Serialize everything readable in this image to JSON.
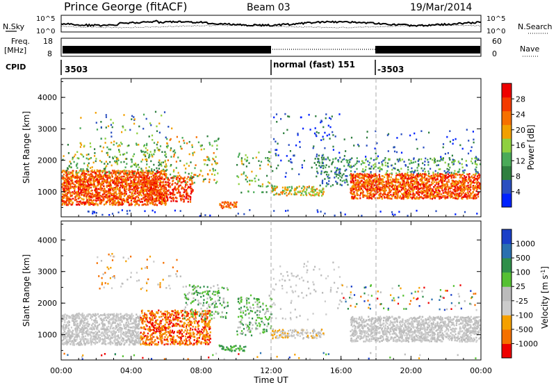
{
  "header": {
    "station": "Prince George (fitACF)",
    "beam": "Beam 03",
    "date": "19/Mar/2014"
  },
  "top_strip": {
    "left_label": "N.Sky",
    "right_label": "N.Search",
    "left_ticks": [
      "10^5",
      "10^0"
    ],
    "right_ticks": [
      "10^5",
      "10^0"
    ]
  },
  "freq_strip": {
    "left_label_1": "Freq.",
    "left_label_2": "[MHz]",
    "right_label": "Nave",
    "left_ticks": [
      "18",
      "8"
    ],
    "right_ticks": [
      "60",
      "0"
    ]
  },
  "cpid_strip": {
    "label": "CPID",
    "segments": [
      {
        "text": "3503"
      },
      {
        "text": "normal (fast) 151"
      },
      {
        "text": "-3503"
      }
    ]
  },
  "colors": {
    "power_scale": [
      "#0022ff",
      "#2a4fc0",
      "#2f7f3f",
      "#4aaa58",
      "#8fd03f",
      "#f2a000",
      "#f77000",
      "#f43a00",
      "#ee0000"
    ],
    "velocity_scale": [
      "#1a3fc8",
      "#2a70b0",
      "#2f8f4a",
      "#55c032",
      "#bbbbbb",
      "#cccccc",
      "#f5a000",
      "#f57000",
      "#ee0000"
    ]
  },
  "chart_data": [
    {
      "type": "heatmap",
      "title": "Power",
      "ylabel": "Slant Range [km]",
      "xlabel": "Time UT",
      "ylim": [
        200,
        4600
      ],
      "yticks": [
        "1000",
        "2000",
        "3000",
        "4000"
      ],
      "xticks": [
        "00:00",
        "04:00",
        "08:00",
        "12:00",
        "16:00",
        "20:00",
        "00:00"
      ],
      "colorbar": {
        "label": "Power [dB]",
        "ticks": [
          "28",
          "24",
          "20",
          "16",
          "12",
          "8",
          "4"
        ]
      }
    },
    {
      "type": "heatmap",
      "title": "Velocity",
      "ylabel": "Slant Range [km]",
      "xlabel": "Time UT",
      "ylim": [
        200,
        4600
      ],
      "yticks": [
        "1000",
        "2000",
        "3000",
        "4000"
      ],
      "xticks": [
        "00:00",
        "04:00",
        "08:00",
        "12:00",
        "16:00",
        "20:00",
        "00:00"
      ],
      "colorbar": {
        "label": "Velocity [m s",
        "label_sup": "-1",
        "label_end": "]",
        "ticks": [
          "1000",
          "500",
          "100",
          "25",
          "-25",
          "-100",
          "-500",
          "-1000"
        ]
      }
    }
  ],
  "time_axis_label": "Time UT"
}
